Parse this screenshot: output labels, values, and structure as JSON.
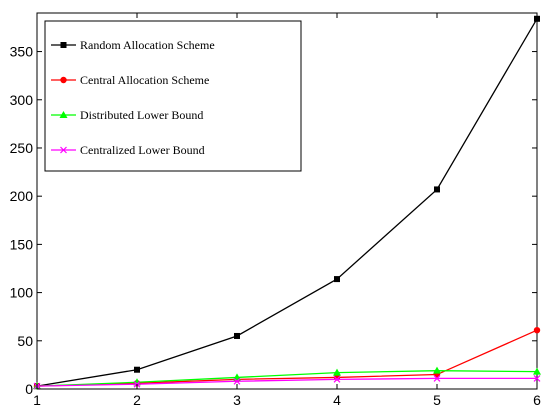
{
  "chart_data": {
    "type": "line",
    "title": "",
    "xlabel": "",
    "ylabel": "",
    "x": [
      1,
      2,
      3,
      4,
      5,
      6
    ],
    "xlim": [
      1,
      6
    ],
    "ylim": [
      0,
      390
    ],
    "xticks": [
      1,
      2,
      3,
      4,
      5,
      6
    ],
    "yticks": [
      0,
      50,
      100,
      150,
      200,
      250,
      300,
      350
    ],
    "grid": false,
    "legend_position": "top-left",
    "series": [
      {
        "name": "Random Allocation Scheme",
        "color": "#000000",
        "marker": "square",
        "values": [
          3,
          20,
          55,
          114,
          207,
          384
        ]
      },
      {
        "name": "Central Allocation Scheme",
        "color": "#ff0000",
        "marker": "circle",
        "values": [
          3,
          6,
          10,
          12,
          15,
          61
        ]
      },
      {
        "name": "Distributed Lower Bound",
        "color": "#00ff00",
        "marker": "triangle",
        "values": [
          3,
          7,
          12,
          17,
          19,
          18
        ]
      },
      {
        "name": "Centralized Lower Bound",
        "color": "#ff00ff",
        "marker": "x",
        "values": [
          3,
          5,
          8,
          10,
          11,
          11
        ]
      }
    ]
  }
}
